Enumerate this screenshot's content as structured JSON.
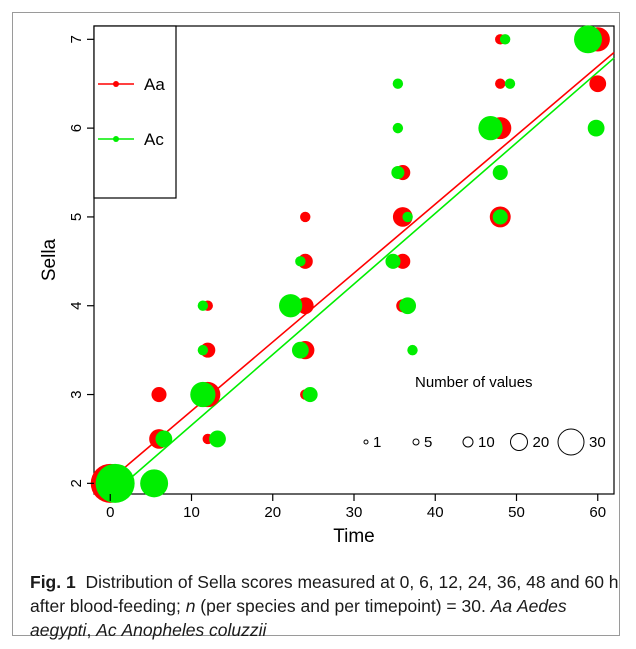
{
  "chart_data": {
    "type": "scatter",
    "title": "",
    "xlabel": "Time",
    "ylabel": "Sella",
    "xlim": [
      -2,
      62
    ],
    "ylim": [
      1.88,
      7.15
    ],
    "x_ticks": [
      0,
      10,
      20,
      30,
      40,
      50,
      60
    ],
    "y_ticks": [
      2,
      3,
      4,
      5,
      6,
      7
    ],
    "x_tick_labels": [
      "0",
      "10",
      "20",
      "30",
      "40",
      "50",
      "60"
    ],
    "y_tick_labels": [
      "2",
      "3",
      "4",
      "5",
      "6",
      "7"
    ],
    "legend": {
      "position": "top-left",
      "entries": [
        {
          "label": "Aa",
          "color": "#ff0000"
        },
        {
          "label": "Ac",
          "color": "#00ee00"
        }
      ]
    },
    "size_legend": {
      "title": "Number of values",
      "values": [
        1,
        5,
        10,
        20,
        30
      ],
      "labels": [
        "1",
        "5",
        "10",
        "20",
        "30"
      ]
    },
    "series": [
      {
        "name": "Aa",
        "color": "#ff0000",
        "fit": {
          "intercept": 2.04,
          "slope": 0.0776
        },
        "points": [
          {
            "x": 0,
            "y": 2,
            "n": 30
          },
          {
            "x": 6,
            "y": 3,
            "n": 3
          },
          {
            "x": 6,
            "y": 2.5,
            "n": 6
          },
          {
            "x": 12,
            "y": 4,
            "n": 1
          },
          {
            "x": 12,
            "y": 3.5,
            "n": 3
          },
          {
            "x": 12,
            "y": 3,
            "n": 11
          },
          {
            "x": 12,
            "y": 2.5,
            "n": 1
          },
          {
            "x": 24,
            "y": 5,
            "n": 1
          },
          {
            "x": 24,
            "y": 4.5,
            "n": 3
          },
          {
            "x": 24,
            "y": 4,
            "n": 4
          },
          {
            "x": 24,
            "y": 3.5,
            "n": 5
          },
          {
            "x": 24,
            "y": 3,
            "n": 1
          },
          {
            "x": 36,
            "y": 5.5,
            "n": 3
          },
          {
            "x": 36,
            "y": 5,
            "n": 6
          },
          {
            "x": 36,
            "y": 4.5,
            "n": 3
          },
          {
            "x": 36,
            "y": 4,
            "n": 2
          },
          {
            "x": 48,
            "y": 7,
            "n": 1
          },
          {
            "x": 48,
            "y": 6.5,
            "n": 1
          },
          {
            "x": 48,
            "y": 6,
            "n": 8
          },
          {
            "x": 48,
            "y": 5,
            "n": 7
          },
          {
            "x": 60,
            "y": 7,
            "n": 10
          },
          {
            "x": 60,
            "y": 6.5,
            "n": 4
          }
        ]
      },
      {
        "name": "Ac",
        "color": "#00ee00",
        "fit": {
          "intercept": 1.86,
          "slope": 0.0795
        },
        "points": [
          {
            "x": 0.6,
            "y": 2,
            "n": 30
          },
          {
            "x": 5.4,
            "y": 2,
            "n": 14
          },
          {
            "x": 6.6,
            "y": 2.5,
            "n": 4
          },
          {
            "x": 11.4,
            "y": 4,
            "n": 1
          },
          {
            "x": 11.4,
            "y": 3.5,
            "n": 1
          },
          {
            "x": 11.4,
            "y": 3,
            "n": 11
          },
          {
            "x": 13.2,
            "y": 2.5,
            "n": 4
          },
          {
            "x": 22.2,
            "y": 4,
            "n": 9
          },
          {
            "x": 23.4,
            "y": 4.5,
            "n": 1
          },
          {
            "x": 23.4,
            "y": 3.5,
            "n": 4
          },
          {
            "x": 24.6,
            "y": 3,
            "n": 3
          },
          {
            "x": 34.8,
            "y": 4.5,
            "n": 3
          },
          {
            "x": 35.4,
            "y": 6,
            "n": 1
          },
          {
            "x": 35.4,
            "y": 5.5,
            "n": 2
          },
          {
            "x": 35.4,
            "y": 6.5,
            "n": 1
          },
          {
            "x": 36.6,
            "y": 5,
            "n": 1
          },
          {
            "x": 36.6,
            "y": 4,
            "n": 4
          },
          {
            "x": 37.2,
            "y": 3.5,
            "n": 1
          },
          {
            "x": 46.8,
            "y": 6,
            "n": 10
          },
          {
            "x": 48,
            "y": 5.5,
            "n": 3
          },
          {
            "x": 48,
            "y": 5,
            "n": 3
          },
          {
            "x": 48.6,
            "y": 7,
            "n": 1
          },
          {
            "x": 49.2,
            "y": 6.5,
            "n": 1
          },
          {
            "x": 58.8,
            "y": 7,
            "n": 14
          },
          {
            "x": 59.8,
            "y": 6,
            "n": 4
          }
        ]
      }
    ]
  },
  "caption": {
    "fig_label": "Fig. 1",
    "text_1": "Distribution of Sella scores measured at 0, 6, 12, 24, 36, 48 and 60 h after blood-feeding;",
    "n_symbol": "n",
    "text_2": "(per species and per timepoint) = 30.",
    "aa_abbr": "Aa",
    "aa_name": "Aedes aegypti",
    "ac_abbr": "Ac",
    "ac_name": "Anopheles coluzzii"
  }
}
